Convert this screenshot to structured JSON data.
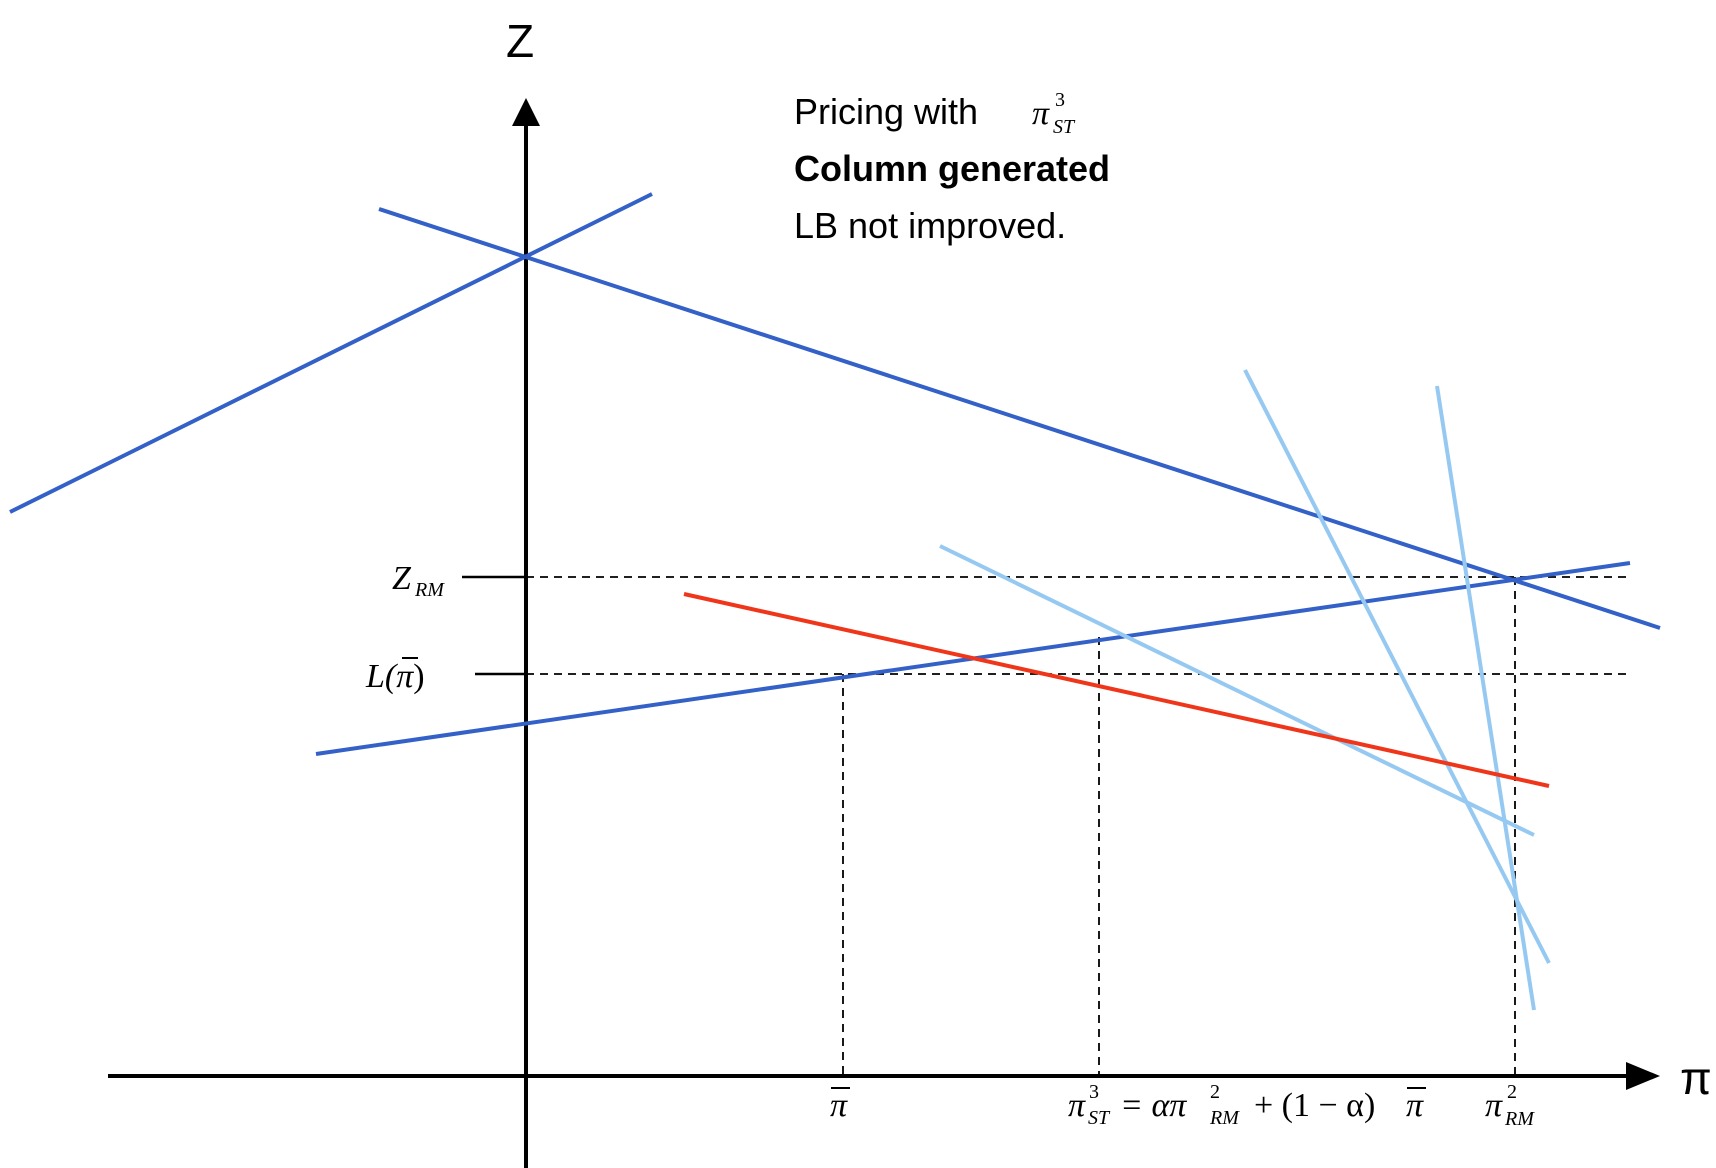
{
  "axes": {
    "y_name": "Z",
    "x_name": "π"
  },
  "note": {
    "line1_prefix": "Pricing with",
    "line1_symbol": "π",
    "line1_symbol_sup": "3",
    "line1_symbol_sub": "ST",
    "line2": "Column generated",
    "line3": "LB not improved."
  },
  "y_labels": {
    "z_rm_main": "Z",
    "z_rm_sub": "RM",
    "l_pi": "L(",
    "l_pi_bar": "π",
    "l_pi_close": ")"
  },
  "x_labels": {
    "pi_bar": "π",
    "pi_st_main": "π",
    "pi_st_sup": "3",
    "pi_st_sub": "ST",
    "pi_st_formula_1": "= απ",
    "pi_st_formula_sup": "2",
    "pi_st_formula_sub": "RM",
    "pi_st_formula_2": "+ (1 − α)",
    "pi_st_formula_bar": "π",
    "pi_rm_main": "π",
    "pi_rm_sup": "2",
    "pi_rm_sub": "RM"
  },
  "colors": {
    "dark_blue": "#3461c8",
    "light_blue": "#96c9f2",
    "red": "#f0361a",
    "axis": "#000000"
  }
}
